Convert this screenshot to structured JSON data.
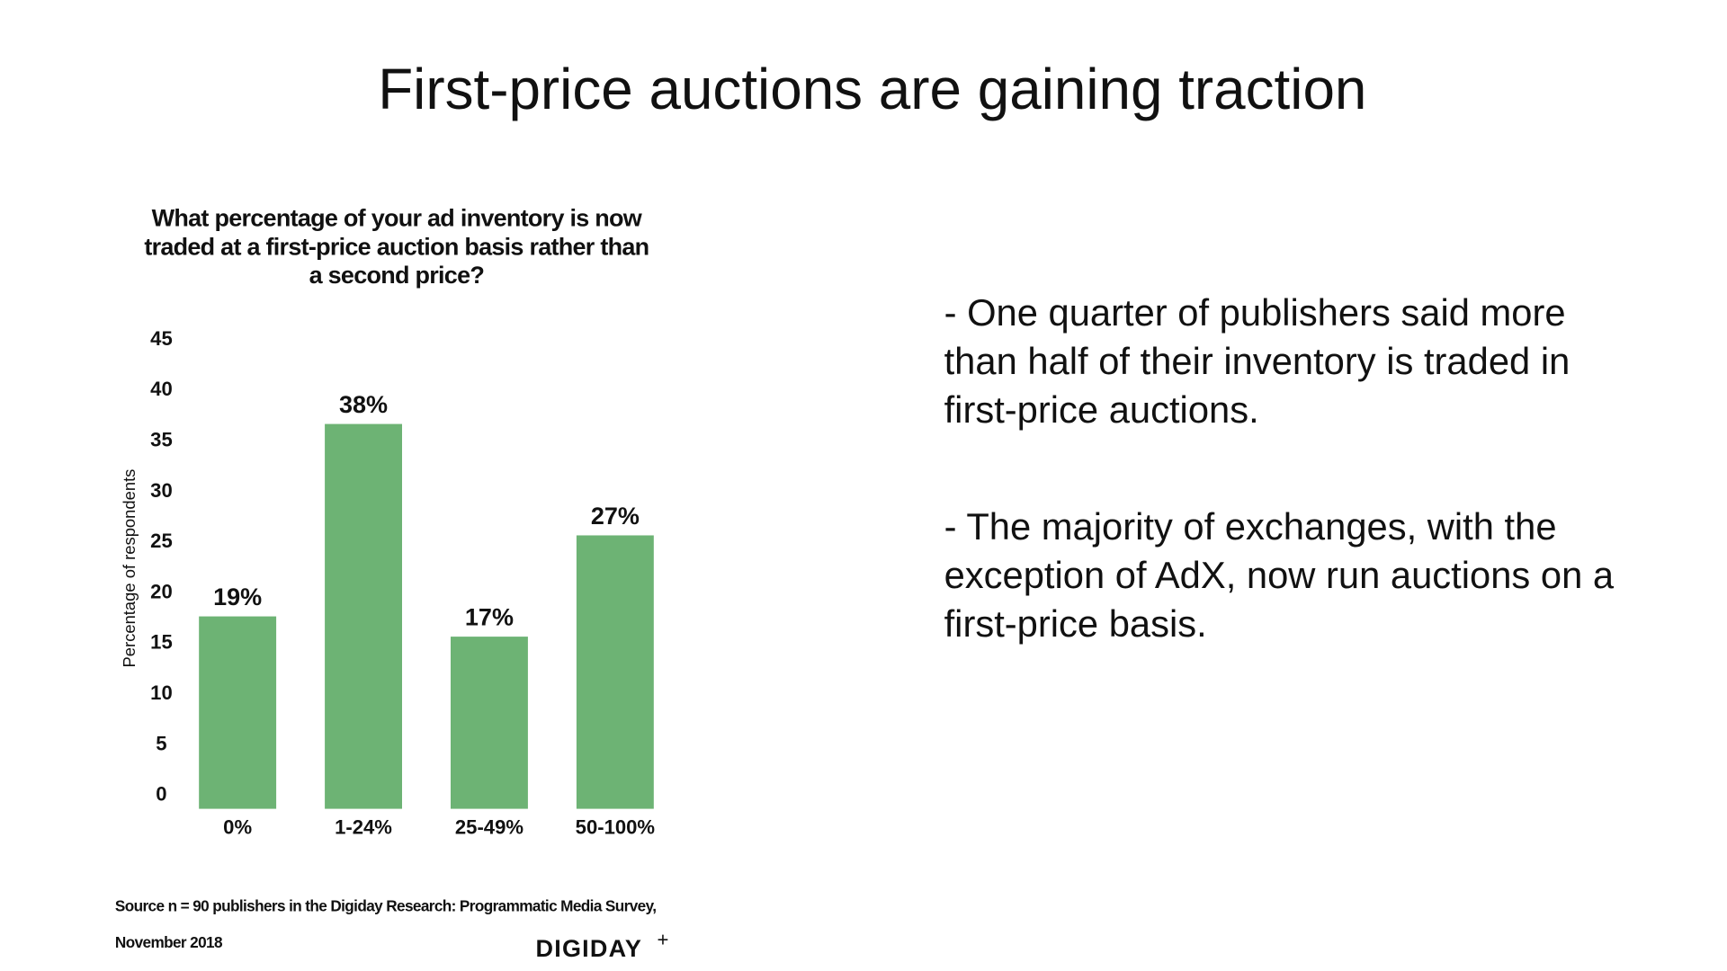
{
  "header": {
    "title": "First-price auctions are gaining traction"
  },
  "chart_data": {
    "type": "bar",
    "title": [
      "What percentage of your ad inventory is now",
      "traded at a first-price auction basis rather than",
      "a second price?"
    ],
    "y_label": "Percentage of respondents",
    "categories": [
      "0%",
      "1-24%",
      "25-49%",
      "50-100%"
    ],
    "values": [
      19,
      38,
      17,
      27
    ],
    "value_labels": [
      "19%",
      "38%",
      "17%",
      "27%"
    ],
    "color": "#6db374",
    "ylim": [
      0,
      45
    ],
    "yticks": [
      0,
      5,
      10,
      15,
      20,
      25,
      30,
      35,
      40,
      45
    ],
    "grid": false,
    "source": [
      "Source n = 90 publishers in the Digiday Research: Programmatic Media Survey,",
      "November 2018"
    ]
  },
  "logo": {
    "name": "DIGIDAY",
    "mark": "+"
  },
  "notes": [
    [
      "- One quarter of publishers said more",
      "than half of their inventory is traded in",
      "first-price auctions."
    ],
    [
      "- The majority of exchanges, with the",
      "exception of AdX, now run auctions on a",
      "first-price basis."
    ]
  ]
}
